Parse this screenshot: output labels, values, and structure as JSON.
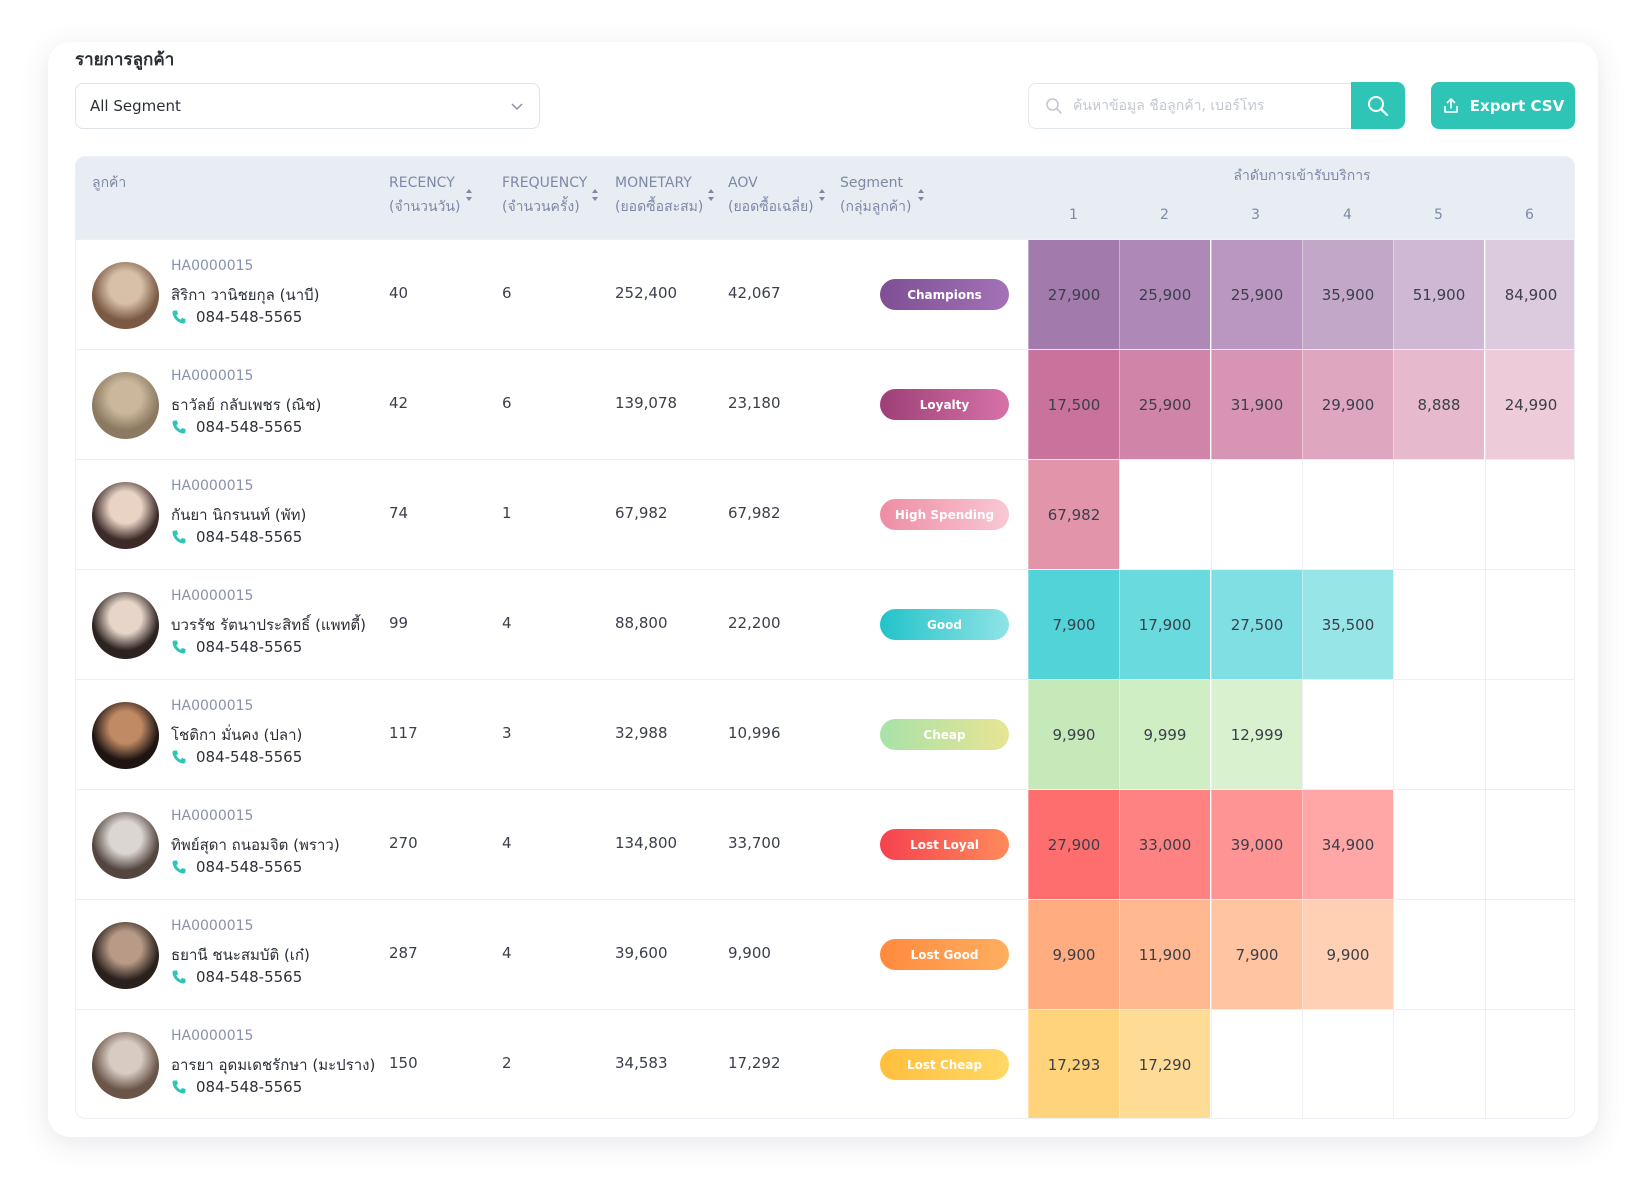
{
  "page": {
    "title": "รายการลูกค้า",
    "segment_select": "All Segment",
    "search_placeholder": "ค้นหาข้อมูล ชื่อลูกค้า, เบอร์โทร",
    "export_label": "Export CSV"
  },
  "colors": {
    "accent": "#2ec4b6",
    "header_bg": "#e8ecf3",
    "header_text": "#7d8aa6"
  },
  "table": {
    "headers": {
      "customer": "ลูกค้า",
      "recency": [
        "RECENCY",
        "(จำนวนวัน)"
      ],
      "frequency": [
        "FREQUENCY",
        "(จำนวนครั้ง)"
      ],
      "monetary": [
        "MONETARY",
        "(ยอดซื้อสะสม)"
      ],
      "aov": [
        "AOV",
        "(ยอดซื้อเฉลี่ย)"
      ],
      "segment": [
        "Segment",
        "(กลุ่มลูกค้า)"
      ],
      "visits_group": "ลำดับการเข้ารับบริการ",
      "visit_numbers": [
        "1",
        "2",
        "3",
        "4",
        "5",
        "6"
      ]
    },
    "rows": [
      {
        "id": "HA0000015",
        "name": "สิริกา วานิชยกุล (นาบี)",
        "phone": "084-548-5565",
        "recency": "40",
        "frequency": "6",
        "monetary": "252,400",
        "aov": "42,067",
        "segment": "Champions",
        "badge_bg": "linear-gradient(90deg,#7e4f93,#a472b6)",
        "visits": [
          "27,900",
          "25,900",
          "25,900",
          "35,900",
          "51,900",
          "84,900"
        ],
        "visit_colors": [
          "#a27aac",
          "#ae88b6",
          "#b997c0",
          "#c3a7c9",
          "#cfb8d4",
          "#dccbdf"
        ],
        "avatar_colors": [
          "#d8c0a8",
          "#7b5a44"
        ]
      },
      {
        "id": "HA0000015",
        "name": "ธาวัลย์ กลับเพชร (ณิช)",
        "phone": "084-548-5565",
        "recency": "42",
        "frequency": "6",
        "monetary": "139,078",
        "aov": "23,180",
        "segment": "Loyalty",
        "badge_bg": "linear-gradient(90deg,#9e3f78,#d672a8)",
        "visits": [
          "17,500",
          "25,900",
          "31,900",
          "29,900",
          "8,888",
          "24,990"
        ],
        "visit_colors": [
          "#c8729c",
          "#d085a8",
          "#d895b3",
          "#dfa6bf",
          "#e6b9cc",
          "#edcbd9"
        ],
        "avatar_colors": [
          "#cbb89c",
          "#8b7a61"
        ]
      },
      {
        "id": "HA0000015",
        "name": "กันยา นิกรนนท์ (พัท)",
        "phone": "084-548-5565",
        "recency": "74",
        "frequency": "1",
        "monetary": "67,982",
        "aov": "67,982",
        "segment": "High Spending",
        "badge_bg": "linear-gradient(90deg,#ee8da3,#f9c8d4)",
        "visits": [
          "67,982"
        ],
        "visit_colors": [
          "#e295aa"
        ],
        "avatar_colors": [
          "#e8d3c4",
          "#3c2a28"
        ]
      },
      {
        "id": "HA0000015",
        "name": "บวรรัช รัตนาประสิทธิ์ (แพทตี้)",
        "phone": "084-548-5565",
        "recency": "99",
        "frequency": "4",
        "monetary": "88,800",
        "aov": "22,200",
        "segment": "Good",
        "badge_bg": "linear-gradient(90deg,#22c3c9,#8fe3e6)",
        "visits": [
          "7,900",
          "17,900",
          "27,500",
          "35,500"
        ],
        "visit_colors": [
          "#52d3d7",
          "#69dadd",
          "#7fdfe2",
          "#97e5e7"
        ],
        "avatar_colors": [
          "#e6d5c8",
          "#2c2220"
        ]
      },
      {
        "id": "HA0000015",
        "name": "โชติกา มั่นคง (ปลา)",
        "phone": "084-548-5565",
        "recency": "117",
        "frequency": "3",
        "monetary": "32,988",
        "aov": "10,996",
        "segment": "Cheap",
        "badge_bg": "linear-gradient(90deg,#a8e2a8,#e8e494)",
        "visits": [
          "9,990",
          "9,999",
          "12,999"
        ],
        "visit_colors": [
          "#c6e9b9",
          "#cfeec3",
          "#d9f1ce"
        ],
        "avatar_colors": [
          "#c08a64",
          "#1e1412"
        ]
      },
      {
        "id": "HA0000015",
        "name": "ทิพย์สุดา ถนอมจิต (พราว)",
        "phone": "084-548-5565",
        "recency": "270",
        "frequency": "4",
        "monetary": "134,800",
        "aov": "33,700",
        "segment": "Lost Loyal",
        "badge_bg": "linear-gradient(90deg,#f5424f,#ff8a5a)",
        "visits": [
          "27,900",
          "33,000",
          "39,000",
          "34,900"
        ],
        "visit_colors": [
          "#ff6e6e",
          "#ff8282",
          "#ff9494",
          "#ffa7a7"
        ],
        "avatar_colors": [
          "#dcd6d2",
          "#54463f"
        ]
      },
      {
        "id": "HA0000015",
        "name": "ธยานี ชนะสมบัติ (เก๋)",
        "phone": "084-548-5565",
        "recency": "287",
        "frequency": "4",
        "monetary": "39,600",
        "aov": "9,900",
        "segment": "Lost Good",
        "badge_bg": "linear-gradient(90deg,#ff8a3d,#ffae60)",
        "visits": [
          "9,900",
          "11,900",
          "7,900",
          "9,900"
        ],
        "visit_colors": [
          "#ffac80",
          "#ffb890",
          "#ffc4a2",
          "#ffd0b4"
        ],
        "avatar_colors": [
          "#b89a86",
          "#2a201c"
        ]
      },
      {
        "id": "HA0000015",
        "name": "อารยา อุดมเดชรักษา (มะปราง)",
        "phone": "084-548-5565",
        "recency": "150",
        "frequency": "2",
        "monetary": "34,583",
        "aov": "17,292",
        "segment": "Lost Cheap",
        "badge_bg": "linear-gradient(90deg,#ffbf3c,#ffd866)",
        "visits": [
          "17,293",
          "17,290"
        ],
        "visit_colors": [
          "#ffd27c",
          "#ffdc96"
        ],
        "avatar_colors": [
          "#d7cbc2",
          "#6a5548"
        ]
      }
    ]
  }
}
